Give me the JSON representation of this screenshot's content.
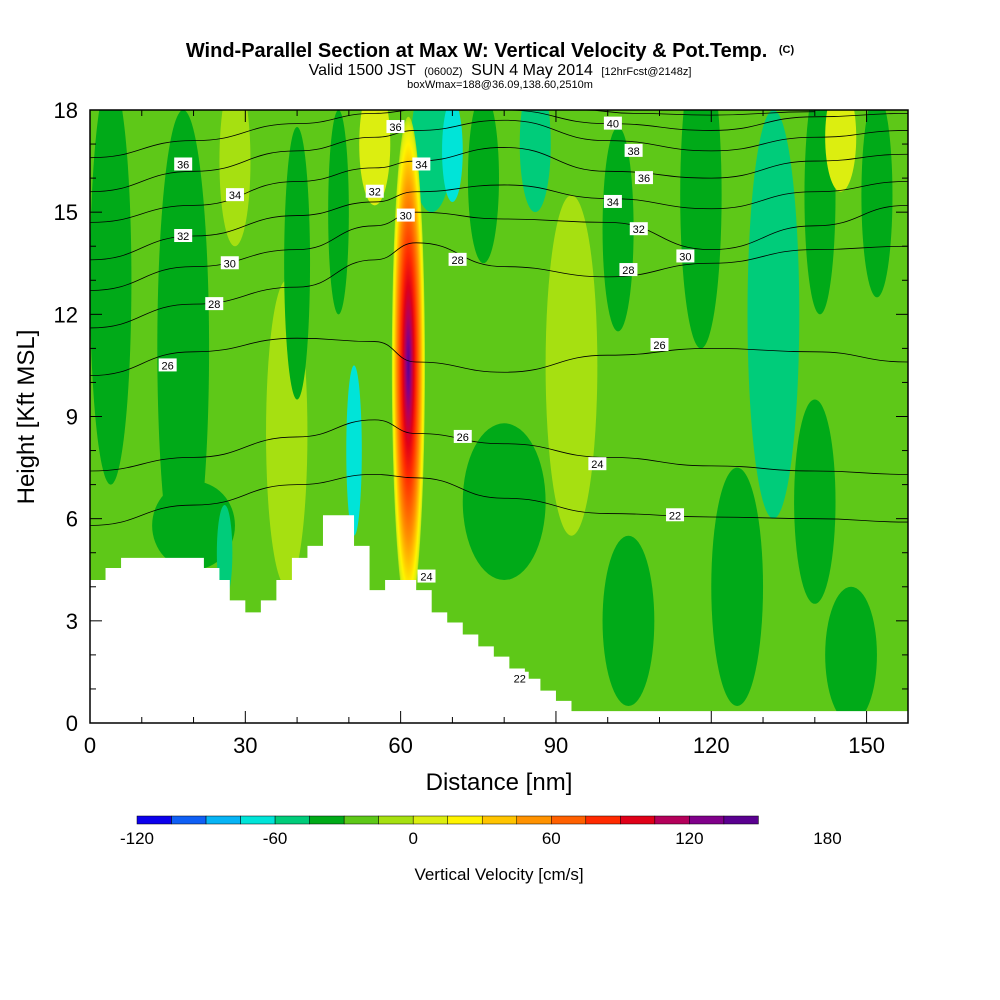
{
  "title": {
    "main": "Wind-Parallel Section at Max W: Vertical Velocity & Pot.Temp.",
    "main_mark": "(C)",
    "valid_prefix": "Valid 1500 JST",
    "valid_utc": "(0600Z)",
    "valid_date": "SUN 4 May 2014",
    "forecast": "[12hrFcst@2148z]",
    "box": "boxWmax=188@36.09,138.60,2510m"
  },
  "colors": {
    "terrain": "#ffffff",
    "contour": "#000000",
    "palette": [
      "#0c00ec",
      "#0f5ff5",
      "#07b4f5",
      "#00e4d8",
      "#00cc7a",
      "#00aa18",
      "#5ec818",
      "#a6e011",
      "#dcee10",
      "#fff400",
      "#ffc400",
      "#ff9200",
      "#ff6000",
      "#ff2a00",
      "#e00018",
      "#b4005a",
      "#80008a",
      "#5a0090"
    ]
  },
  "chart_data": {
    "type": "heatmap",
    "xlabel": "Distance [nm]",
    "ylabel": "Height [Kft MSL]",
    "xlim": [
      0,
      158
    ],
    "ylim": [
      0,
      18
    ],
    "x_ticks": [
      0,
      30,
      60,
      90,
      120,
      150
    ],
    "y_ticks": [
      0,
      3,
      6,
      9,
      12,
      15,
      18
    ],
    "fill_variable": "Vertical Velocity [cm/s]",
    "colorbar": {
      "label": "Vertical Velocity [cm/s]",
      "levels": [
        -120,
        -105,
        -90,
        -75,
        -60,
        -45,
        -30,
        -15,
        0,
        15,
        30,
        45,
        60,
        75,
        90,
        105,
        120,
        135,
        150,
        165,
        180,
        195
      ],
      "tick_labels": [
        -120,
        -60,
        0,
        60,
        120,
        180
      ]
    },
    "updraft_max": {
      "x": 61.5,
      "y": 10.5,
      "value": 188
    },
    "terrain_profile": [
      [
        0,
        4.2
      ],
      [
        3,
        4.2
      ],
      [
        3,
        4.55
      ],
      [
        6,
        4.55
      ],
      [
        6,
        4.85
      ],
      [
        22,
        4.85
      ],
      [
        22,
        4.55
      ],
      [
        25,
        4.55
      ],
      [
        25,
        4.2
      ],
      [
        27,
        4.2
      ],
      [
        27,
        3.6
      ],
      [
        30,
        3.6
      ],
      [
        30,
        3.25
      ],
      [
        33,
        3.25
      ],
      [
        33,
        3.6
      ],
      [
        36,
        3.6
      ],
      [
        36,
        4.2
      ],
      [
        39,
        4.2
      ],
      [
        39,
        4.85
      ],
      [
        42,
        4.85
      ],
      [
        42,
        5.2
      ],
      [
        45,
        5.2
      ],
      [
        45,
        6.1
      ],
      [
        51,
        6.1
      ],
      [
        51,
        5.2
      ],
      [
        54,
        5.2
      ],
      [
        54,
        3.9
      ],
      [
        57,
        3.9
      ],
      [
        57,
        4.2
      ],
      [
        63,
        4.2
      ],
      [
        63,
        3.9
      ],
      [
        66,
        3.9
      ],
      [
        66,
        3.25
      ],
      [
        69,
        3.25
      ],
      [
        69,
        2.95
      ],
      [
        72,
        2.95
      ],
      [
        72,
        2.6
      ],
      [
        75,
        2.6
      ],
      [
        75,
        2.25
      ],
      [
        78,
        2.25
      ],
      [
        78,
        1.95
      ],
      [
        81,
        1.95
      ],
      [
        81,
        1.6
      ],
      [
        84,
        1.6
      ],
      [
        84,
        1.3
      ],
      [
        87,
        1.3
      ],
      [
        87,
        0.95
      ],
      [
        90,
        0.95
      ],
      [
        90,
        0.65
      ],
      [
        93,
        0.65
      ],
      [
        93,
        0.35
      ],
      [
        158,
        0.35
      ]
    ],
    "theta_contours": [
      {
        "value": 22,
        "points": [
          [
            0,
            5.8
          ],
          [
            20,
            6.4
          ],
          [
            40,
            7.0
          ],
          [
            55,
            7.3
          ],
          [
            63,
            7.2
          ],
          [
            80,
            6.6
          ],
          [
            100,
            6.15
          ],
          [
            120,
            6.05
          ],
          [
            140,
            6.0
          ],
          [
            158,
            5.9
          ]
        ]
      },
      {
        "value": 24,
        "points": [
          [
            0,
            7.4
          ],
          [
            20,
            7.8
          ],
          [
            40,
            8.4
          ],
          [
            55,
            8.9
          ],
          [
            63,
            8.5
          ],
          [
            80,
            8.2
          ],
          [
            100,
            7.8
          ],
          [
            120,
            7.55
          ],
          [
            140,
            7.4
          ],
          [
            158,
            7.3
          ]
        ]
      },
      {
        "value": 26,
        "points": [
          [
            0,
            10.2
          ],
          [
            20,
            10.9
          ],
          [
            40,
            11.3
          ],
          [
            55,
            11.2
          ],
          [
            63,
            10.6
          ],
          [
            80,
            10.3
          ],
          [
            100,
            10.8
          ],
          [
            120,
            11.0
          ],
          [
            140,
            10.9
          ],
          [
            158,
            10.6
          ]
        ]
      },
      {
        "value": 28,
        "points": [
          [
            0,
            11.6
          ],
          [
            20,
            12.3
          ],
          [
            40,
            12.8
          ],
          [
            55,
            13.6
          ],
          [
            63,
            14.1
          ],
          [
            80,
            13.4
          ],
          [
            100,
            13.1
          ],
          [
            120,
            13.5
          ],
          [
            140,
            13.9
          ],
          [
            158,
            14.0
          ]
        ]
      },
      {
        "value": 30,
        "points": [
          [
            0,
            12.7
          ],
          [
            20,
            13.4
          ],
          [
            40,
            13.9
          ],
          [
            55,
            14.6
          ],
          [
            63,
            15.0
          ],
          [
            80,
            14.8
          ],
          [
            100,
            14.7
          ],
          [
            120,
            13.9
          ],
          [
            140,
            14.6
          ],
          [
            158,
            15.2
          ]
        ]
      },
      {
        "value": 32,
        "points": [
          [
            0,
            13.6
          ],
          [
            20,
            14.3
          ],
          [
            40,
            14.9
          ],
          [
            55,
            15.3
          ],
          [
            63,
            15.6
          ],
          [
            80,
            15.8
          ],
          [
            100,
            15.4
          ],
          [
            120,
            15.1
          ],
          [
            140,
            15.6
          ],
          [
            158,
            15.9
          ]
        ]
      },
      {
        "value": 34,
        "points": [
          [
            0,
            14.7
          ],
          [
            20,
            15.2
          ],
          [
            40,
            15.9
          ],
          [
            55,
            16.3
          ],
          [
            63,
            16.5
          ],
          [
            80,
            16.9
          ],
          [
            100,
            16.2
          ],
          [
            120,
            16.0
          ],
          [
            140,
            16.5
          ],
          [
            158,
            16.7
          ]
        ]
      },
      {
        "value": 36,
        "points": [
          [
            0,
            15.6
          ],
          [
            20,
            16.2
          ],
          [
            40,
            16.8
          ],
          [
            55,
            17.2
          ],
          [
            63,
            17.4
          ],
          [
            80,
            17.7
          ],
          [
            100,
            17.1
          ],
          [
            120,
            16.8
          ],
          [
            140,
            17.2
          ],
          [
            158,
            17.4
          ]
        ]
      },
      {
        "value": 38,
        "points": [
          [
            0,
            16.6
          ],
          [
            20,
            17.1
          ],
          [
            40,
            17.6
          ],
          [
            55,
            17.9
          ],
          [
            63,
            18.0
          ],
          [
            80,
            18.0
          ],
          [
            100,
            17.6
          ],
          [
            120,
            17.4
          ],
          [
            140,
            17.8
          ],
          [
            158,
            17.9
          ]
        ]
      },
      {
        "value": 40,
        "points": [
          [
            95,
            18.0
          ],
          [
            105,
            17.9
          ],
          [
            120,
            17.85
          ],
          [
            140,
            17.95
          ]
        ]
      }
    ],
    "contour_labels": [
      {
        "text": "36",
        "x": 18,
        "y": 16.4
      },
      {
        "text": "34",
        "x": 28,
        "y": 15.5
      },
      {
        "text": "32",
        "x": 18,
        "y": 14.3
      },
      {
        "text": "30",
        "x": 27,
        "y": 13.5
      },
      {
        "text": "28",
        "x": 24,
        "y": 12.3
      },
      {
        "text": "26",
        "x": 15,
        "y": 10.5
      },
      {
        "text": "36",
        "x": 59,
        "y": 17.5
      },
      {
        "text": "34",
        "x": 64,
        "y": 16.4
      },
      {
        "text": "32",
        "x": 55,
        "y": 15.6
      },
      {
        "text": "30",
        "x": 61,
        "y": 14.9
      },
      {
        "text": "28",
        "x": 71,
        "y": 13.6
      },
      {
        "text": "26",
        "x": 72,
        "y": 8.4
      },
      {
        "text": "24",
        "x": 65,
        "y": 4.3
      },
      {
        "text": "22",
        "x": 83,
        "y": 1.3
      },
      {
        "text": "40",
        "x": 101,
        "y": 17.6
      },
      {
        "text": "38",
        "x": 105,
        "y": 16.8
      },
      {
        "text": "36",
        "x": 107,
        "y": 16.0
      },
      {
        "text": "34",
        "x": 101,
        "y": 15.3
      },
      {
        "text": "32",
        "x": 106,
        "y": 14.5
      },
      {
        "text": "30",
        "x": 115,
        "y": 13.7
      },
      {
        "text": "28",
        "x": 104,
        "y": 13.3
      },
      {
        "text": "26",
        "x": 110,
        "y": 11.1
      },
      {
        "text": "24",
        "x": 98,
        "y": 7.6
      },
      {
        "text": "22",
        "x": 113,
        "y": 6.1
      }
    ]
  }
}
